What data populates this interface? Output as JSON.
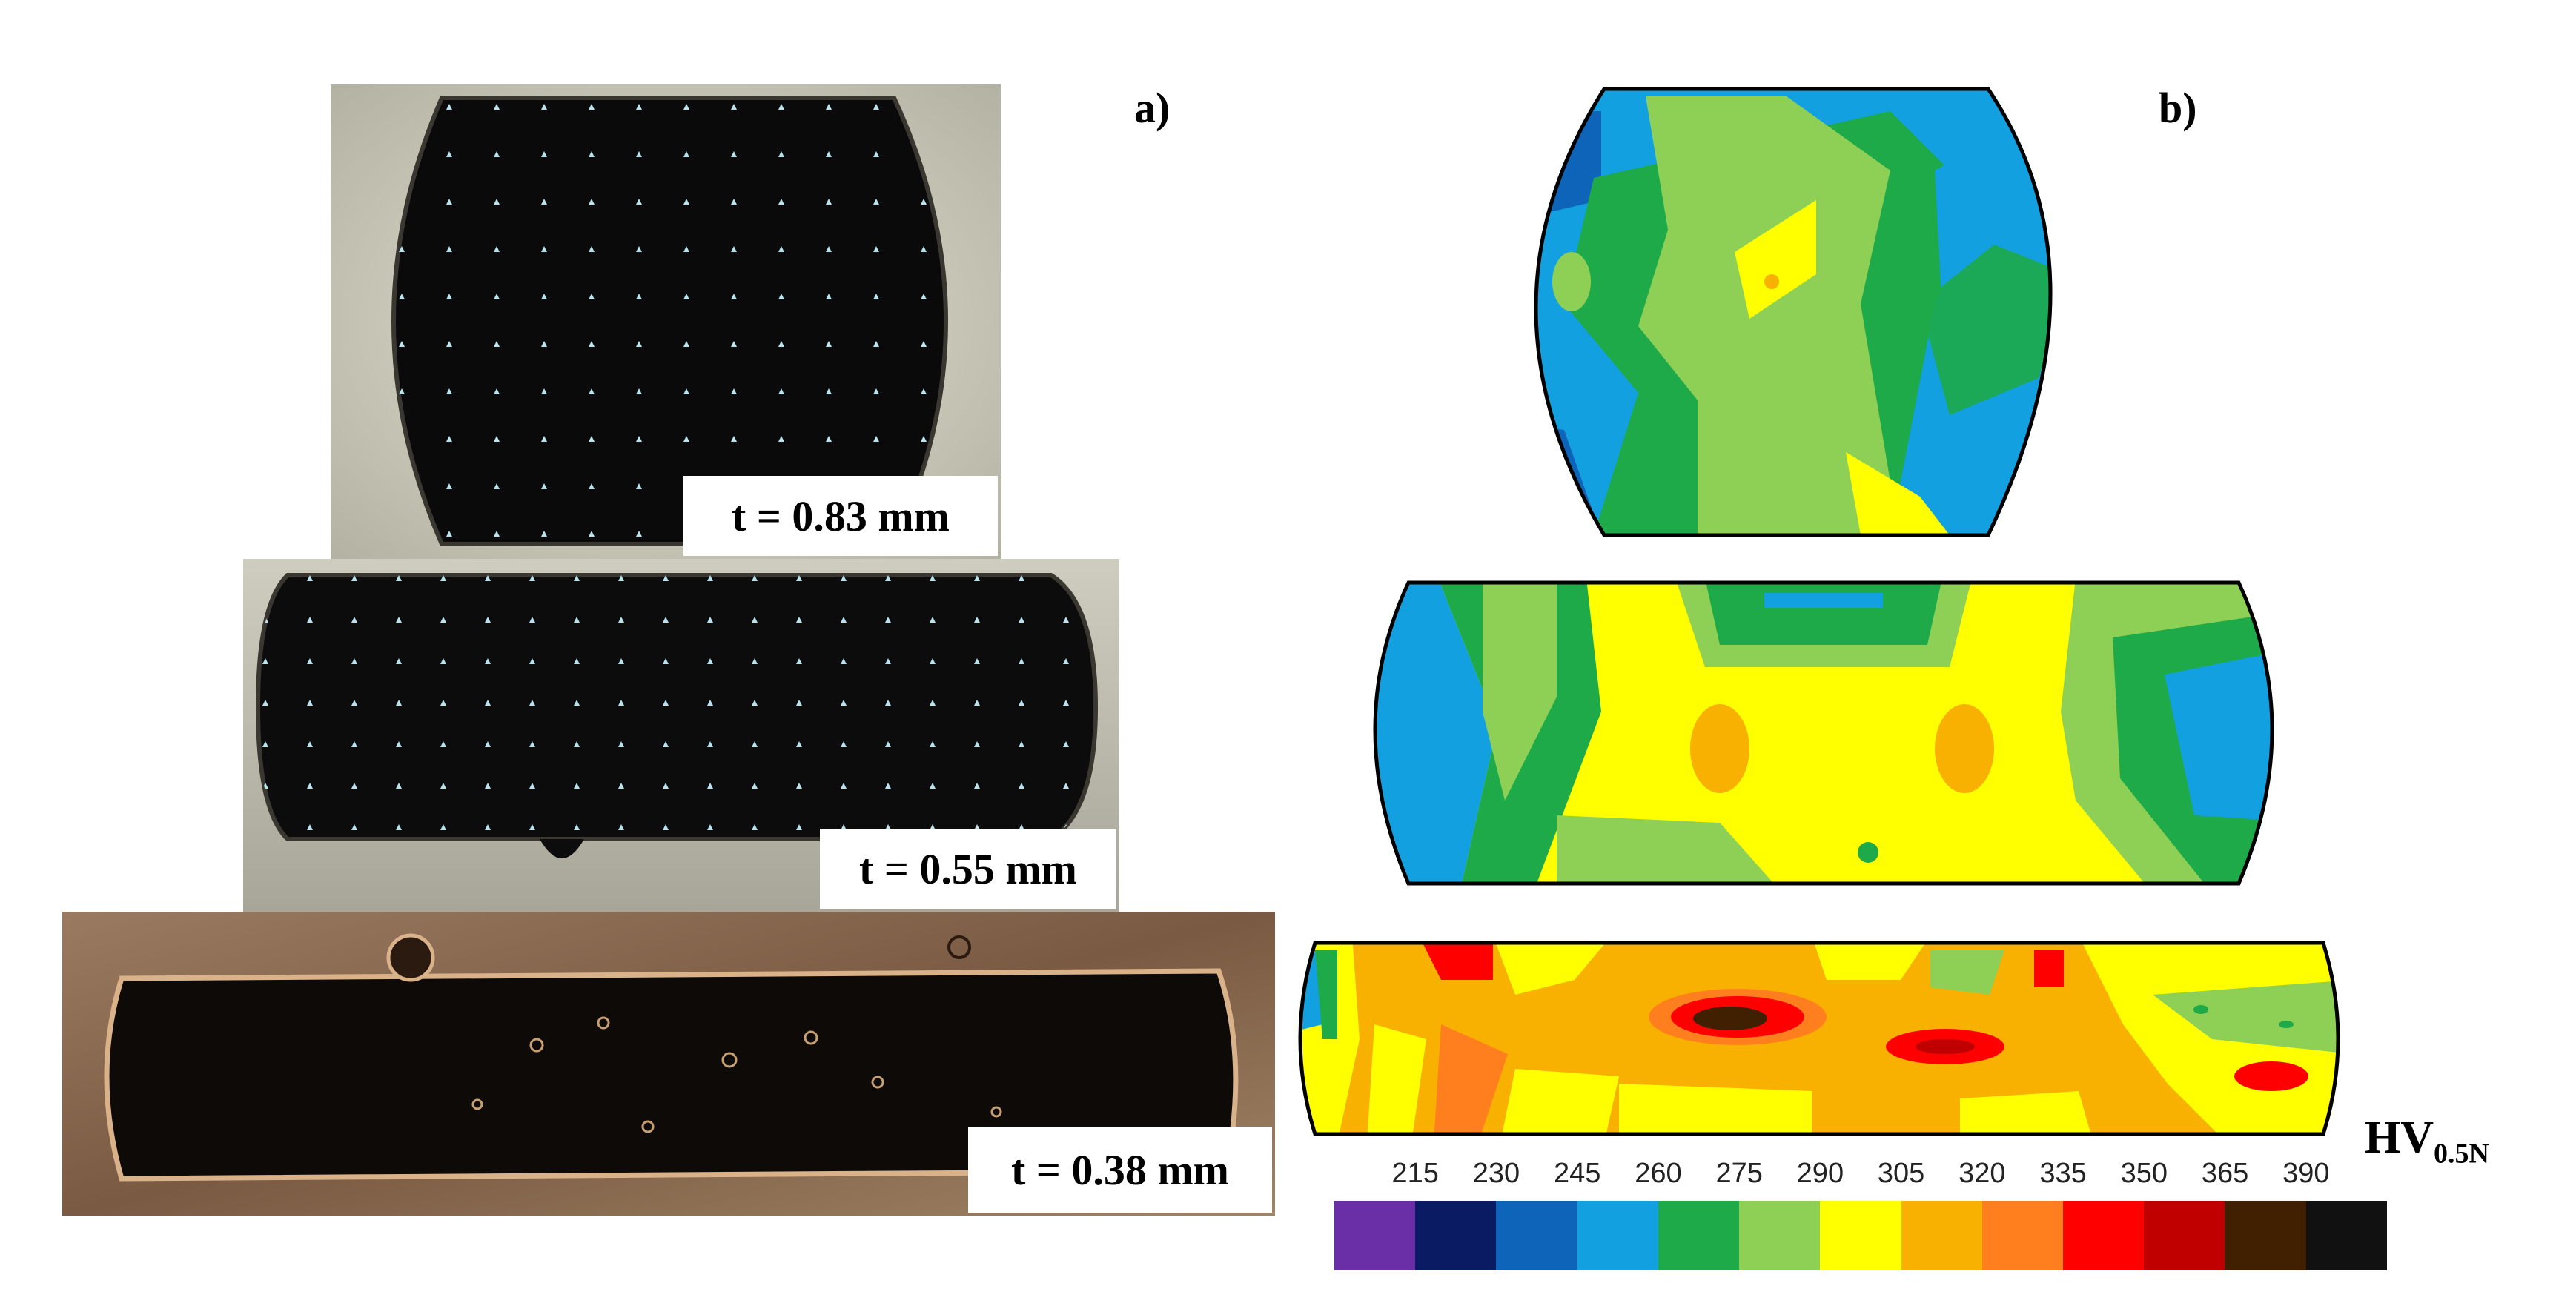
{
  "panel_a": {
    "letter": "a)",
    "samples": [
      {
        "thickness_label": "t = 0.83 mm"
      },
      {
        "thickness_label": "t = 0.55 mm"
      },
      {
        "thickness_label": "t = 0.38 mm"
      }
    ]
  },
  "panel_b": {
    "letter": "b)",
    "colorbar": {
      "title_main": "HV",
      "title_sub": "0.5N",
      "ticks": [
        "215",
        "230",
        "245",
        "260",
        "275",
        "290",
        "305",
        "320",
        "335",
        "350",
        "365",
        "390"
      ],
      "colors": [
        "#6a2fa6",
        "#0a1a63",
        "#0e64b8",
        "#12a0e0",
        "#1eaa48",
        "#8ecf55",
        "#ffff00",
        "#f8b100",
        "#ff7f1e",
        "#ff0000",
        "#c00000",
        "#402000",
        "#111111"
      ]
    }
  }
}
